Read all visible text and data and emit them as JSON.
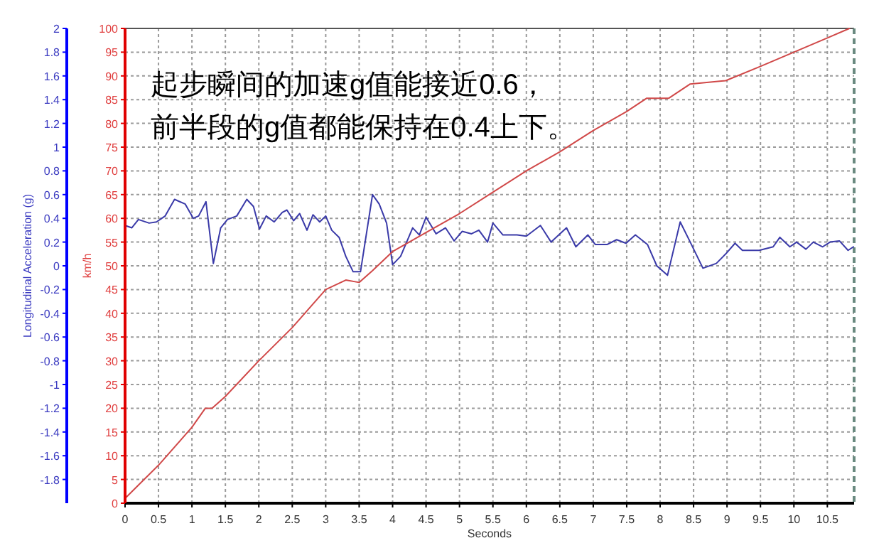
{
  "chart_data": {
    "type": "line",
    "xlabel": "Seconds",
    "ylabel": "Longitudinal Acceleration (g)",
    "y2label": "km/h",
    "annotations": [
      "起步瞬间的加速g值能接近0.6，",
      "前半段的g值都能保持在0.4上下。"
    ],
    "xlim": [
      0,
      10.9
    ],
    "xticks": [
      0,
      0.5,
      1,
      1.5,
      2,
      2.5,
      3,
      3.5,
      4,
      4.5,
      5,
      5.5,
      6,
      6.5,
      7,
      7.5,
      8,
      8.5,
      9,
      9.5,
      10,
      10.5
    ],
    "ylim": [
      -2,
      2
    ],
    "yticks": [
      2,
      1.8,
      1.6,
      1.4,
      1.2,
      1,
      0.8,
      0.6,
      0.4,
      0.2,
      0,
      -0.2,
      -0.4,
      -0.6,
      -0.8,
      -1,
      -1.2,
      -1.4,
      -1.6,
      -1.8
    ],
    "y2lim": [
      0,
      100
    ],
    "y2ticks": [
      0,
      5,
      10,
      15,
      20,
      25,
      30,
      35,
      40,
      45,
      50,
      55,
      60,
      65,
      70,
      75,
      80,
      85,
      90,
      95,
      100
    ],
    "grid": true,
    "series": [
      {
        "color": "#3a3aa8",
        "x": [
          0,
          0.1,
          0.2,
          0.36,
          0.47,
          0.6,
          0.74,
          0.9,
          1.02,
          1.1,
          1.21,
          1.32,
          1.43,
          1.53,
          1.67,
          1.82,
          1.92,
          2.01,
          2.11,
          2.23,
          2.35,
          2.42,
          2.52,
          2.61,
          2.72,
          2.81,
          2.91,
          3.0,
          3.09,
          3.2,
          3.3,
          3.41,
          3.52,
          3.7,
          3.8,
          3.91,
          4.0,
          4.12,
          4.3,
          4.4,
          4.5,
          4.65,
          4.79,
          4.92,
          5.04,
          5.18,
          5.29,
          5.42,
          5.5,
          5.65,
          5.86,
          6.0,
          6.21,
          6.37,
          6.6,
          6.74,
          6.92,
          7.03,
          7.21,
          7.35,
          7.49,
          7.63,
          7.81,
          7.95,
          8.11,
          8.3,
          8.45,
          8.64,
          8.84,
          8.98,
          9.12,
          9.23,
          9.48,
          9.69,
          9.79,
          9.94,
          10.04,
          10.18,
          10.29,
          10.43,
          10.54,
          10.68,
          10.81,
          10.89
        ],
        "values": [
          0.34,
          0.32,
          0.39,
          0.36,
          0.37,
          0.42,
          0.56,
          0.52,
          0.4,
          0.42,
          0.54,
          0.02,
          0.32,
          0.39,
          0.42,
          0.56,
          0.5,
          0.31,
          0.42,
          0.37,
          0.45,
          0.47,
          0.38,
          0.44,
          0.3,
          0.43,
          0.37,
          0.42,
          0.3,
          0.24,
          0.08,
          -0.05,
          -0.05,
          0.6,
          0.52,
          0.36,
          0.01,
          0.08,
          0.32,
          0.26,
          0.41,
          0.27,
          0.32,
          0.21,
          0.29,
          0.27,
          0.3,
          0.2,
          0.36,
          0.26,
          0.26,
          0.25,
          0.34,
          0.2,
          0.32,
          0.16,
          0.26,
          0.18,
          0.18,
          0.22,
          0.19,
          0.26,
          0.18,
          0,
          -0.08,
          0.37,
          0.2,
          -0.02,
          0.02,
          0.1,
          0.19,
          0.13,
          0.13,
          0.16,
          0.24,
          0.16,
          0.2,
          0.14,
          0.2,
          0.16,
          0.2,
          0.21,
          0.13,
          0.16
        ]
      },
      {
        "color": "#d04848",
        "axis": "y2",
        "x": [
          0,
          0.5,
          1,
          1.2,
          1.3,
          1.5,
          2,
          2.5,
          3,
          3.3,
          3.5,
          3.7,
          4,
          4.5,
          5,
          5.5,
          6,
          6.5,
          7,
          7.5,
          7.8,
          8.13,
          8.45,
          8.98,
          9.5,
          10,
          10.5,
          10.83
        ],
        "values": [
          1,
          8,
          16,
          20,
          20,
          22.5,
          30,
          37,
          45,
          47,
          46.5,
          49,
          53,
          57,
          61,
          65.5,
          70,
          74,
          78.5,
          82.5,
          85.3,
          85.3,
          88.3,
          89,
          92,
          95,
          98,
          100
        ]
      }
    ]
  }
}
